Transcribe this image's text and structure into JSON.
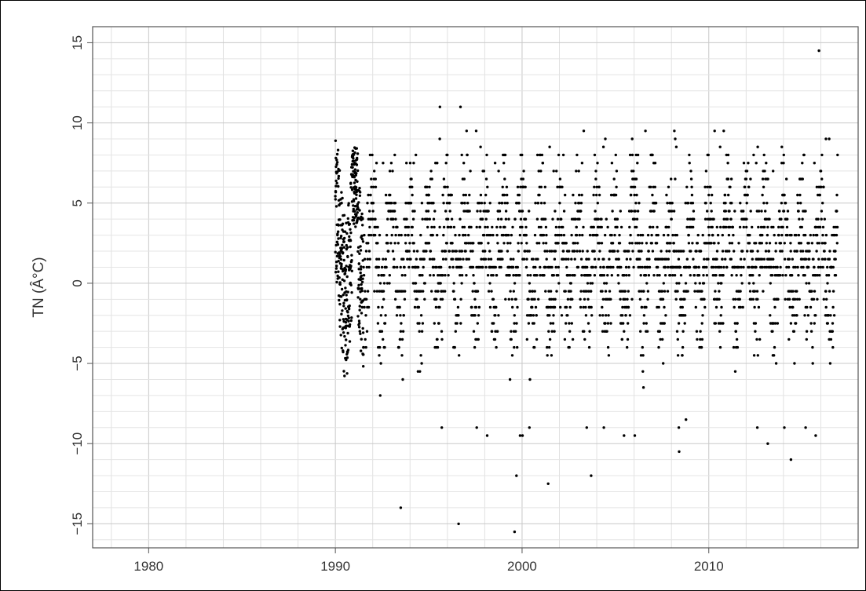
{
  "chart_data": {
    "type": "scatter",
    "title": "",
    "xlabel": "",
    "ylabel": "TN (Â°C)",
    "xlim": [
      1977,
      2018
    ],
    "ylim": [
      -16.5,
      16
    ],
    "x_ticks": [
      "1980",
      "1990",
      "2000",
      "2010"
    ],
    "y_ticks": [
      "15",
      "10",
      "5",
      "0",
      "−5",
      "−10",
      "−15"
    ],
    "grid": true,
    "legend": "none",
    "point_color": "#000000",
    "x_start": 1990.0,
    "x_end": 2016.9,
    "y_range_typical": [
      -9.5,
      8
    ],
    "notable_points": [
      {
        "x": 1993.5,
        "y": -14.0
      },
      {
        "x": 1996.6,
        "y": -15.0
      },
      {
        "x": 1999.6,
        "y": -15.5
      },
      {
        "x": 1999.7,
        "y": -12.0
      },
      {
        "x": 2001.4,
        "y": -12.5
      },
      {
        "x": 2003.7,
        "y": -12.0
      },
      {
        "x": 2014.4,
        "y": -11.0
      },
      {
        "x": 2015.9,
        "y": 14.5
      },
      {
        "x": 1995.6,
        "y": 11.0
      },
      {
        "x": 1996.7,
        "y": 11.0
      },
      {
        "x": 2008.2,
        "y": 9.0
      }
    ]
  }
}
